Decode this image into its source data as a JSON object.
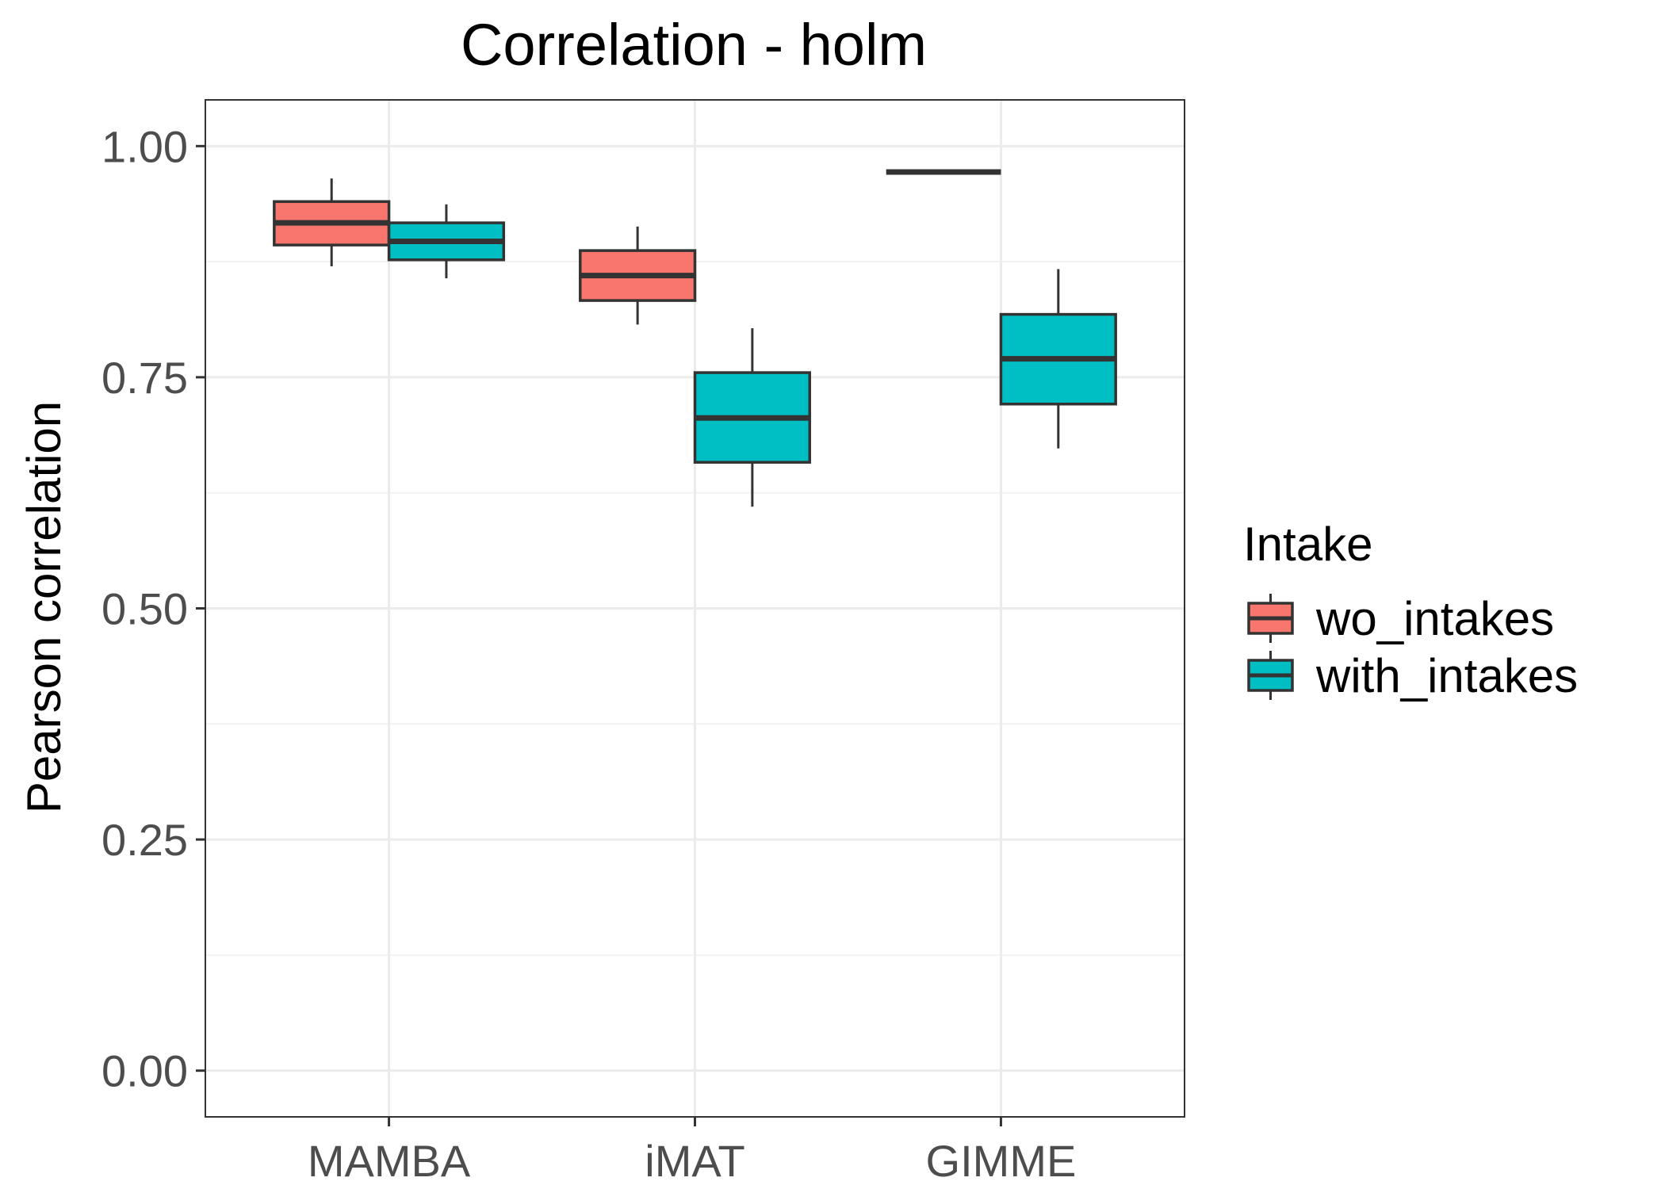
{
  "chart_data": {
    "type": "boxplot",
    "title": "Correlation - holm",
    "xlabel": "",
    "ylabel": "Pearson correlation",
    "ylim": [
      -0.05,
      1.05
    ],
    "y_ticks": [
      "0.00",
      "0.25",
      "0.50",
      "0.75",
      "1.00"
    ],
    "y_tick_values": [
      0,
      0.25,
      0.5,
      0.75,
      1.0
    ],
    "categories": [
      "MAMBA",
      "iMAT",
      "GIMME"
    ],
    "grid": true,
    "legend": {
      "title": "Intake",
      "position": "right"
    },
    "series": [
      {
        "name": "wo_intakes",
        "color": "#F8766D",
        "boxes": [
          {
            "category": "MAMBA",
            "min": 0.87,
            "q1": 0.893,
            "median": 0.917,
            "q3": 0.94,
            "max": 0.965
          },
          {
            "category": "iMAT",
            "min": 0.807,
            "q1": 0.833,
            "median": 0.86,
            "q3": 0.887,
            "max": 0.913
          },
          {
            "category": "GIMME",
            "min": 0.972,
            "q1": 0.972,
            "median": 0.972,
            "q3": 0.972,
            "max": 0.972
          }
        ]
      },
      {
        "name": "with_intakes",
        "color": "#00BFC4",
        "boxes": [
          {
            "category": "MAMBA",
            "min": 0.857,
            "q1": 0.877,
            "median": 0.897,
            "q3": 0.917,
            "max": 0.937
          },
          {
            "category": "iMAT",
            "min": 0.61,
            "q1": 0.658,
            "median": 0.706,
            "q3": 0.755,
            "max": 0.803
          },
          {
            "category": "GIMME",
            "min": 0.673,
            "q1": 0.721,
            "median": 0.77,
            "q3": 0.818,
            "max": 0.867
          }
        ]
      }
    ],
    "colors": {
      "box_outline": "#333333",
      "panel_border": "#333333",
      "grid_major": "#ebebeb",
      "grid_minor": "#f2f2f2"
    }
  }
}
